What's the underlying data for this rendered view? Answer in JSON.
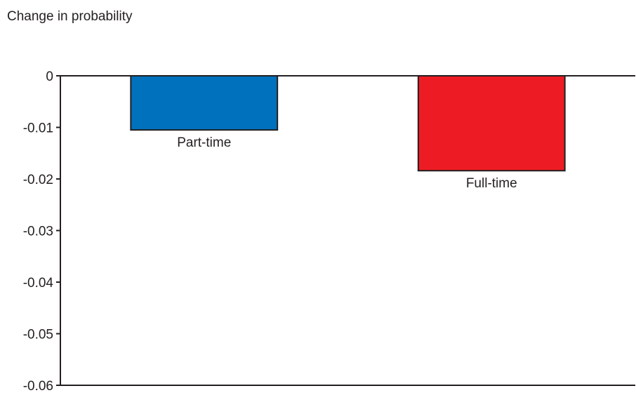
{
  "chart_data": {
    "type": "bar",
    "title": "Change in probability",
    "xlabel": "",
    "ylabel": "",
    "categories": [
      "Part-time",
      "Full-time"
    ],
    "values": [
      -0.0105,
      -0.0184
    ],
    "colors": [
      "#0071bc",
      "#ed1c24"
    ],
    "ylim": [
      -0.06,
      0
    ],
    "yticks": [
      "0",
      "-0.01",
      "-0.02",
      "-0.03",
      "-0.04",
      "-0.05",
      "-0.06"
    ],
    "grid": false,
    "legend": "none"
  }
}
